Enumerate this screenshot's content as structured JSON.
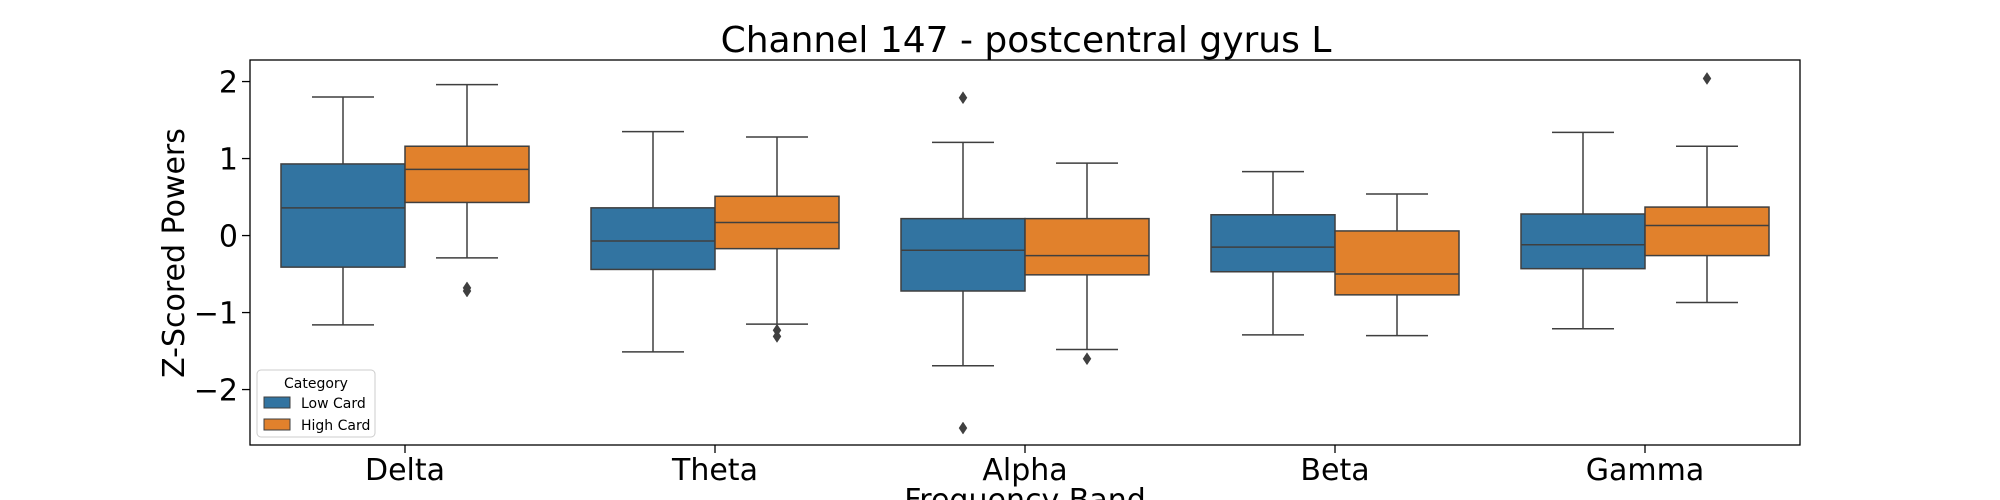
{
  "chart_data": {
    "type": "box",
    "title": "Channel 147 - postcentral gyrus L",
    "xlabel": "Frequency Band",
    "ylabel": "Z-Scored Powers",
    "categories": [
      "Delta",
      "Theta",
      "Alpha",
      "Beta",
      "Gamma"
    ],
    "yticks": [
      -2,
      -1,
      0,
      1,
      2
    ],
    "ytick_labels": [
      "−2",
      "−1",
      "0",
      "1",
      "2"
    ],
    "ylim": [
      -2.72,
      2.28
    ],
    "grid": false,
    "legend": {
      "title": "Category",
      "position": "lower-left"
    },
    "series": [
      {
        "name": "Low Card",
        "color": "#3274a1",
        "boxes": [
          {
            "category": "Delta",
            "whisker_low": -1.16,
            "q1": -0.41,
            "median": 0.36,
            "q3": 0.93,
            "whisker_high": 1.8,
            "outliers": []
          },
          {
            "category": "Theta",
            "whisker_low": -1.51,
            "q1": -0.44,
            "median": -0.07,
            "q3": 0.36,
            "whisker_high": 1.35,
            "outliers": []
          },
          {
            "category": "Alpha",
            "whisker_low": -1.69,
            "q1": -0.72,
            "median": -0.19,
            "q3": 0.22,
            "whisker_high": 1.21,
            "outliers": [
              1.79,
              -2.5
            ]
          },
          {
            "category": "Beta",
            "whisker_low": -1.29,
            "q1": -0.47,
            "median": -0.15,
            "q3": 0.27,
            "whisker_high": 0.83,
            "outliers": []
          },
          {
            "category": "Gamma",
            "whisker_low": -1.21,
            "q1": -0.43,
            "median": -0.12,
            "q3": 0.28,
            "whisker_high": 1.34,
            "outliers": []
          }
        ]
      },
      {
        "name": "High Card",
        "color": "#e1812c",
        "boxes": [
          {
            "category": "Delta",
            "whisker_low": -0.29,
            "q1": 0.43,
            "median": 0.86,
            "q3": 1.16,
            "whisker_high": 1.96,
            "outliers": [
              -0.68,
              -0.72
            ]
          },
          {
            "category": "Theta",
            "whisker_low": -1.15,
            "q1": -0.17,
            "median": 0.17,
            "q3": 0.51,
            "whisker_high": 1.28,
            "outliers": [
              -1.23,
              -1.31
            ]
          },
          {
            "category": "Alpha",
            "whisker_low": -1.48,
            "q1": -0.51,
            "median": -0.26,
            "q3": 0.22,
            "whisker_high": 0.94,
            "outliers": [
              -1.6
            ]
          },
          {
            "category": "Beta",
            "whisker_low": -1.3,
            "q1": -0.77,
            "median": -0.5,
            "q3": 0.06,
            "whisker_high": 0.54,
            "outliers": []
          },
          {
            "category": "Gamma",
            "whisker_low": -0.87,
            "q1": -0.26,
            "median": 0.13,
            "q3": 0.37,
            "whisker_high": 1.16,
            "outliers": [
              2.04
            ]
          }
        ]
      }
    ]
  }
}
